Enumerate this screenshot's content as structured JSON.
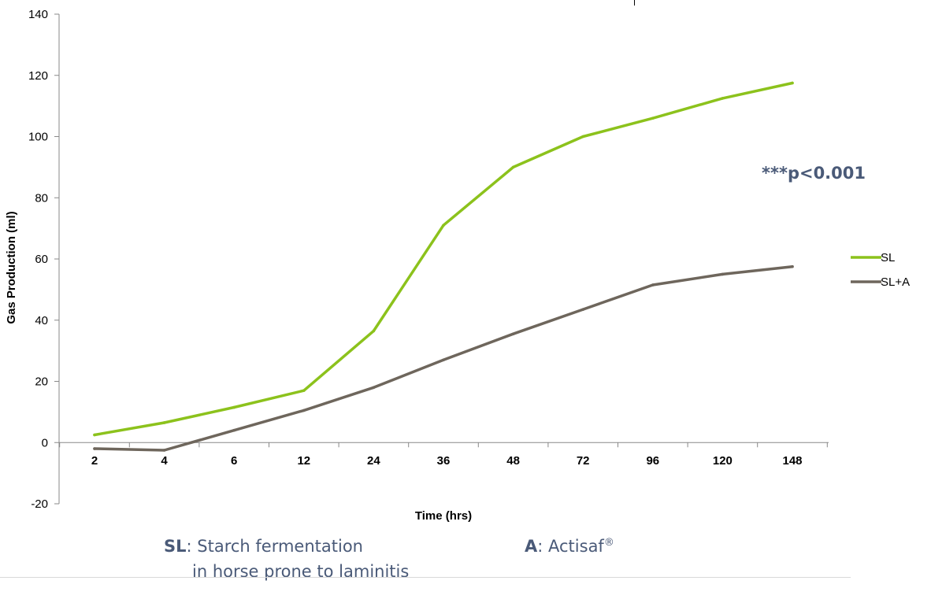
{
  "chart_data": {
    "type": "line",
    "categories": [
      "2",
      "4",
      "6",
      "12",
      "24",
      "36",
      "48",
      "72",
      "96",
      "120",
      "148"
    ],
    "series": [
      {
        "name": "SL",
        "color": "#8cc21c",
        "values": [
          2.5,
          6.5,
          11.5,
          17,
          36.5,
          71,
          90,
          100,
          106,
          112.5,
          117.5
        ]
      },
      {
        "name": "SL+A",
        "color": "#6e665c",
        "values": [
          -2,
          -2.5,
          4,
          10.5,
          18,
          27,
          35.5,
          43.5,
          51.5,
          55,
          57.5
        ]
      }
    ],
    "ylim": [
      -20,
      140
    ],
    "yticks": [
      "-20",
      "0",
      "20",
      "40",
      "60",
      "80",
      "100",
      "120",
      "140"
    ],
    "xlabel": "Time (hrs)",
    "ylabel": "Gas Production (ml)",
    "legend": "right",
    "grid": false,
    "annotation": "***p<0.001"
  },
  "footnotes": {
    "sl_abbr": "SL",
    "sl_desc_1": ": Starch fermentation",
    "sl_desc_2": "in horse prone to laminitis",
    "a_abbr": "A",
    "a_desc": ": Actisaf",
    "a_mark": "®"
  }
}
